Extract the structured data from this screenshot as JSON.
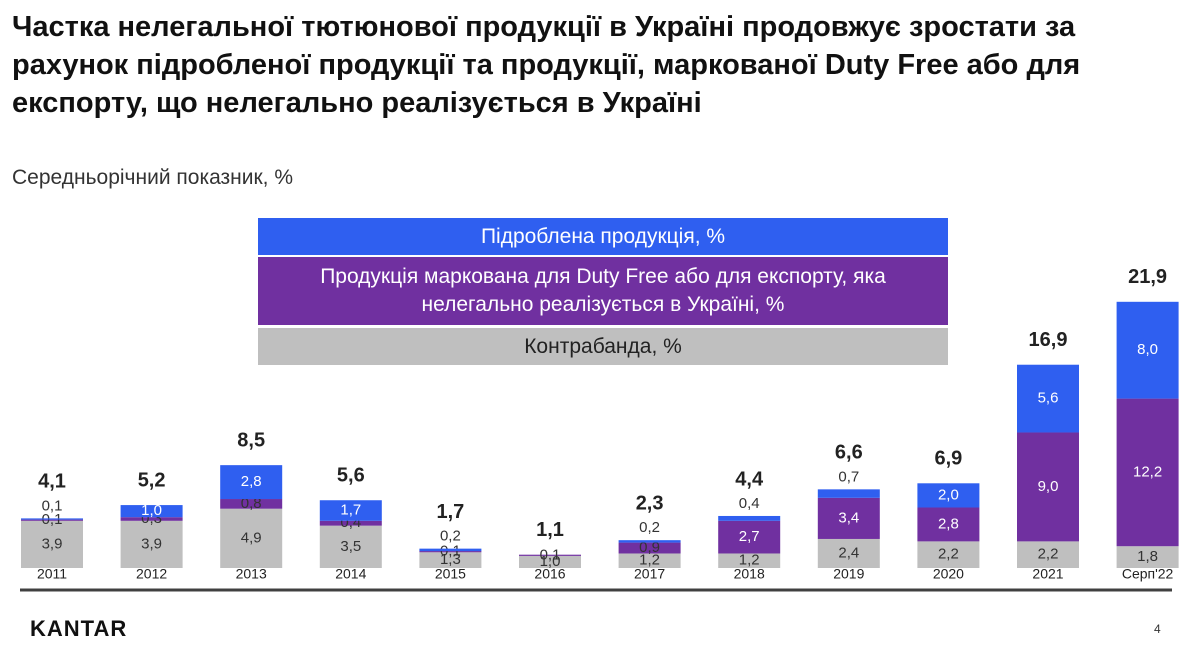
{
  "chart_data": {
    "type": "stacked-bar",
    "title": "Частка нелегальної тютюнової продукції в Україні продовжує зростати за рахунок підробленої продукції та продукції, маркованої Duty Free або для експорту, що нелегально реалізується в Україні",
    "subtitle": "Середньорічний показник, %",
    "categories": [
      "2011",
      "2012",
      "2013",
      "2014",
      "2015",
      "2016",
      "2017",
      "2018",
      "2019",
      "2020",
      "2021",
      "Серп'22"
    ],
    "series": [
      {
        "name": "Контрабанда, %",
        "color": "#bfbfbf",
        "values": [
          3.9,
          3.9,
          4.9,
          3.5,
          1.3,
          1.0,
          1.2,
          1.2,
          2.4,
          2.2,
          2.2,
          1.8
        ],
        "value_labels": [
          "3,9",
          "3,9",
          "4,9",
          "3,5",
          "1,3",
          "1,0",
          "1,2",
          "1,2",
          "2,4",
          "2,2",
          "2,2",
          "1,8"
        ]
      },
      {
        "name": "Продукція маркована для Duty Free або для експорту, яка нелегально реалізується в Україні, %",
        "color": "#7030a0",
        "values": [
          0.1,
          0.3,
          0.8,
          0.4,
          0.1,
          0.1,
          0.9,
          2.7,
          3.4,
          2.8,
          9.0,
          12.2
        ],
        "value_labels": [
          "0,1",
          "0,3",
          "0,8",
          "0,4",
          "0,1",
          "0,1",
          "0,9",
          "2,7",
          "3,4",
          "2,8",
          "9,0",
          "12,2"
        ]
      },
      {
        "name": "Підроблена продукція, %",
        "color": "#2f5ff0",
        "values": [
          0.1,
          1.0,
          2.8,
          1.7,
          0.2,
          null,
          0.2,
          0.4,
          0.7,
          2.0,
          5.6,
          8.0
        ],
        "value_labels": [
          "0,1",
          "1,0",
          "2,8",
          "1,7",
          "0,2",
          null,
          "0,2",
          "0,4",
          "0,7",
          "2,0",
          "5,6",
          "8,0"
        ]
      }
    ],
    "totals": {
      "values": [
        4.1,
        5.2,
        8.5,
        5.6,
        1.7,
        1.1,
        2.3,
        4.4,
        6.6,
        6.9,
        16.9,
        21.9
      ],
      "value_labels": [
        "4,1",
        "5,2",
        "8,5",
        "5,6",
        "1,7",
        "1,1",
        "2,3",
        "4,4",
        "6,6",
        "6,9",
        "16,9",
        "21,9"
      ]
    }
  },
  "footer": {
    "logo": "KANTAR",
    "page": "4"
  }
}
